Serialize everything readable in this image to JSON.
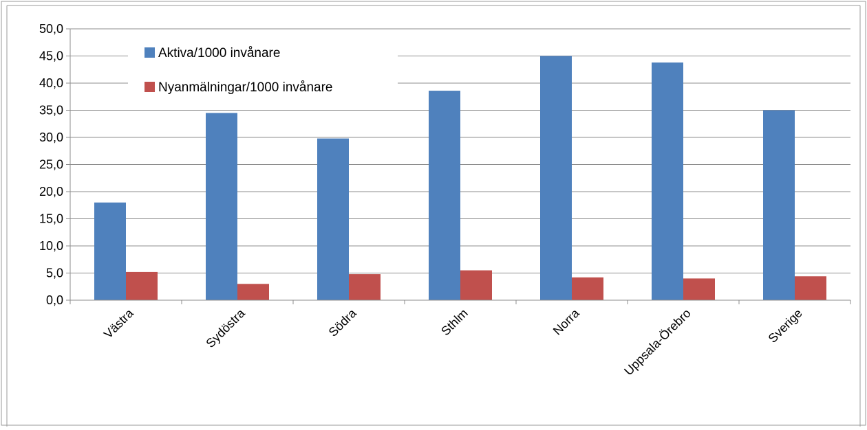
{
  "chart_data": {
    "type": "bar",
    "title": "",
    "xlabel": "",
    "ylabel": "",
    "categories": [
      "Västra",
      "Sydöstra",
      "Södra",
      "Sthlm",
      "Norra",
      "Uppsala-Örebro",
      "Sverige"
    ],
    "series": [
      {
        "name": "Aktiva/1000 invånare",
        "color": "#4f81bd",
        "values": [
          18.0,
          34.5,
          29.8,
          38.6,
          45.0,
          43.8,
          35.0
        ]
      },
      {
        "name": "Nyanmälningar/1000 invånare",
        "color": "#c0504d",
        "values": [
          5.2,
          3.0,
          4.8,
          5.5,
          4.2,
          4.0,
          4.4
        ]
      }
    ],
    "ylim": [
      0,
      50
    ],
    "yticks": [
      "0,0",
      "5,0",
      "10,0",
      "15,0",
      "20,0",
      "25,0",
      "30,0",
      "35,0",
      "40,0",
      "45,0",
      "50,0"
    ],
    "grid": true,
    "legend_position": "top-left"
  }
}
